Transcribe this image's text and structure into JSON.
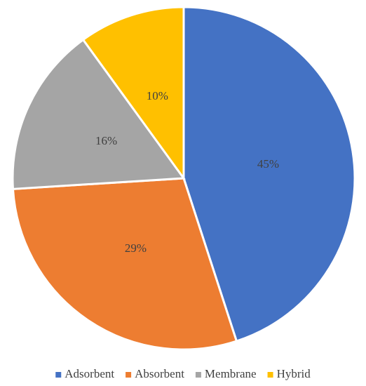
{
  "chart_data": {
    "type": "pie",
    "categories": [
      "Adsorbent",
      "Absorbent",
      "Membrane",
      "Hybrid"
    ],
    "values": [
      45,
      29,
      16,
      10
    ],
    "value_labels": [
      "45%",
      "29%",
      "16%",
      "10%"
    ],
    "colors": [
      "#4472c4",
      "#ed7d31",
      "#a5a5a5",
      "#ffc000"
    ],
    "legend": "bottom"
  }
}
